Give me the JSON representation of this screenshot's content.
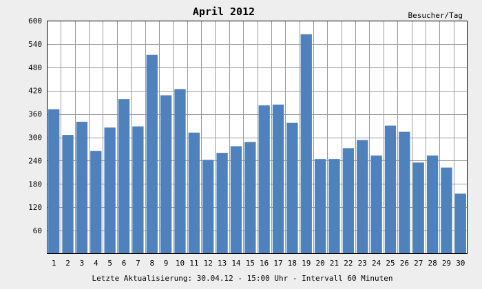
{
  "chart_data": {
    "type": "bar",
    "title": "April 2012",
    "unit_label": "Besucher/Tag",
    "footer": "Letzte Aktualisierung: 30.04.12 - 15:00 Uhr - Intervall 60 Minuten",
    "categories": [
      "1",
      "2",
      "3",
      "4",
      "5",
      "6",
      "7",
      "8",
      "9",
      "10",
      "11",
      "12",
      "13",
      "14",
      "15",
      "16",
      "17",
      "18",
      "19",
      "20",
      "21",
      "22",
      "23",
      "24",
      "25",
      "26",
      "27",
      "28",
      "29",
      "30"
    ],
    "values": [
      372,
      306,
      340,
      265,
      325,
      398,
      328,
      512,
      408,
      424,
      312,
      242,
      260,
      277,
      288,
      382,
      384,
      337,
      565,
      244,
      244,
      272,
      293,
      253,
      330,
      314,
      235,
      253,
      222,
      155
    ],
    "ylim": [
      0,
      600
    ],
    "yticks": [
      60,
      120,
      180,
      240,
      300,
      360,
      420,
      480,
      540,
      600
    ],
    "grid": true,
    "colors": {
      "bar": "#4f81bd",
      "background": "#eeeeee",
      "plot_bg": "#ffffff",
      "grid": "#999999",
      "axis": "#000000"
    }
  }
}
